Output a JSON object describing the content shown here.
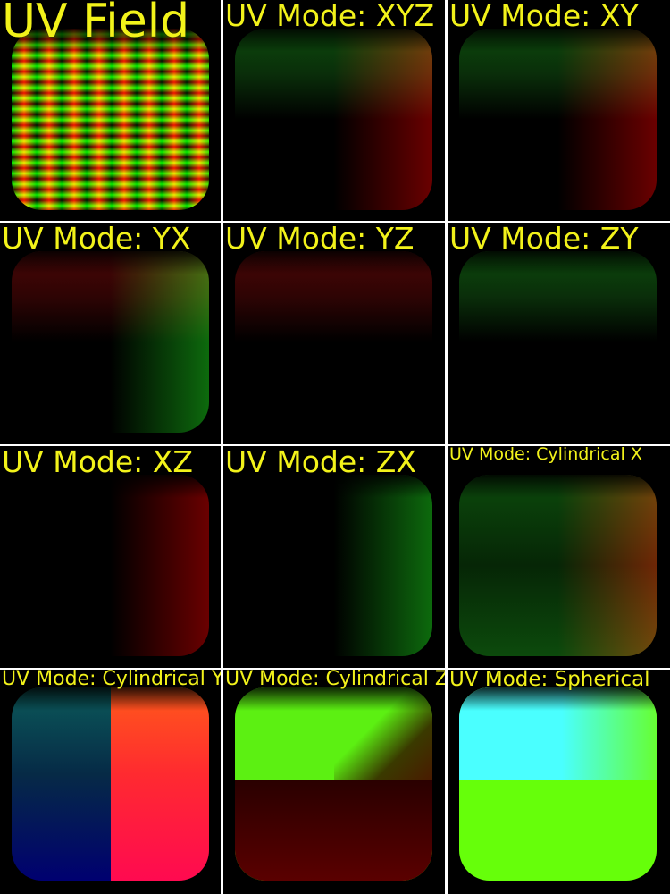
{
  "panels": [
    {
      "label": "UV Field",
      "style": "stripes",
      "size": "big"
    },
    {
      "label": "UV Mode: XYZ",
      "style": "xyz",
      "size": "mid"
    },
    {
      "label": "UV Mode: XY",
      "style": "xy",
      "size": "mid"
    },
    {
      "label": "UV Mode: YX",
      "style": "yx",
      "size": "mid"
    },
    {
      "label": "UV Mode: YZ",
      "style": "yz",
      "size": "mid"
    },
    {
      "label": "UV Mode: ZY",
      "style": "zy",
      "size": "mid"
    },
    {
      "label": "UV Mode: XZ",
      "style": "xz",
      "size": "mid"
    },
    {
      "label": "UV Mode: ZX",
      "style": "zx",
      "size": "mid"
    },
    {
      "label": "UV Mode: Cylindrical X",
      "style": "cylx",
      "size": "tiny"
    },
    {
      "label": "UV Mode: Cylindrical Y",
      "style": "cyly",
      "size": "sml"
    },
    {
      "label": "UV Mode: Cylindrical Z",
      "style": "cylz",
      "size": "sml"
    },
    {
      "label": "UV Mode: Spherical",
      "style": "sph",
      "size": "sph"
    }
  ],
  "colors": {
    "label": "#f2f21a",
    "background": "#000000",
    "separator": "#ffffff"
  }
}
